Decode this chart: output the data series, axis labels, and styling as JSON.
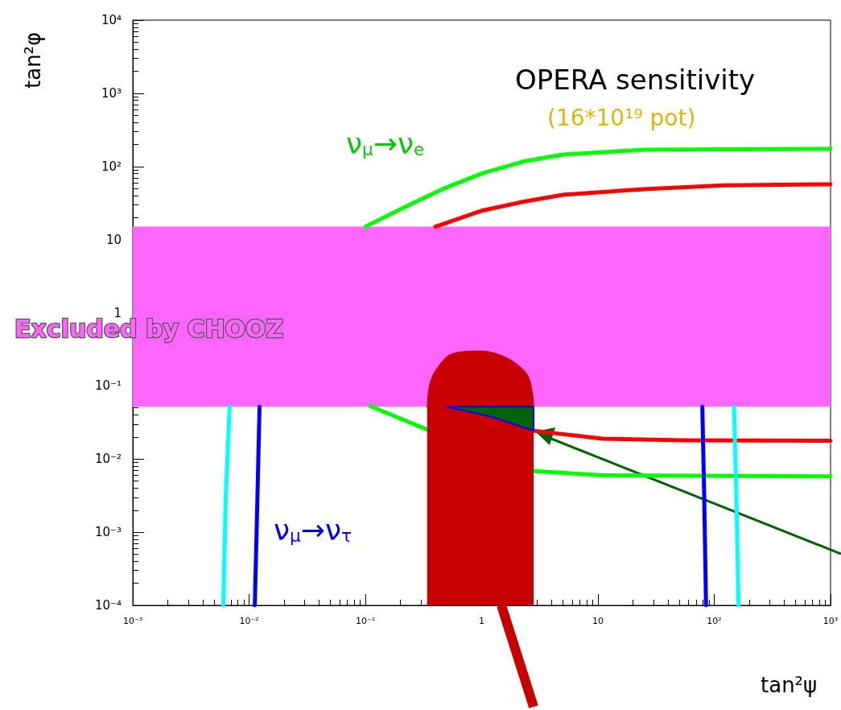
{
  "chart_data": {
    "type": "line",
    "title": "OPERA sensitivity",
    "subtitle": "(16*10¹⁹ pot)",
    "xlabel": "tan²ψ",
    "ylabel": "tan²φ",
    "log": "xy",
    "grid": false,
    "xlim": [
      0.001,
      1000
    ],
    "ylim": [
      0.0001,
      10000
    ],
    "xticks": [
      {
        "value": 0.001,
        "label": "10⁻³"
      },
      {
        "value": 0.01,
        "label": "10⁻²"
      },
      {
        "value": 0.1,
        "label": "10⁻¹"
      },
      1,
      10,
      {
        "value": 100,
        "label": "10²"
      },
      {
        "value": 1000,
        "label": "10³"
      }
    ],
    "yticks": [
      {
        "value": 0.0001,
        "label": "10⁻⁴"
      },
      {
        "value": 0.001,
        "label": "10⁻³"
      },
      {
        "value": 0.01,
        "label": "10⁻²"
      },
      {
        "value": 0.1,
        "label": "10⁻¹"
      },
      1,
      10,
      {
        "value": 100,
        "label": "10²"
      },
      {
        "value": 1000,
        "label": "10³"
      },
      {
        "value": 10000,
        "label": "10⁴"
      }
    ],
    "series": [
      {
        "color": "#00ff00",
        "x": [
          0.1,
          0.21,
          0.46,
          1.02,
          2.3,
          5,
          25,
          1000
        ],
        "values": [
          15,
          27,
          49,
          81,
          117,
          145,
          169,
          174
        ]
      },
      {
        "color": "#00ff00",
        "x": [
          0.11,
          0.29,
          2.7,
          11,
          1000
        ],
        "values": [
          0.053,
          0.028,
          0.0069,
          0.006,
          0.0058
        ]
      },
      {
        "color": "#ff0000",
        "x": [
          0.4,
          1.02,
          2.3,
          5,
          25,
          120,
          1000
        ],
        "values": [
          15,
          25,
          33,
          41,
          49,
          55,
          57
        ]
      },
      {
        "color": "#ff0000",
        "x": [
          2.7,
          11,
          55,
          1000
        ],
        "values": [
          0.0245,
          0.019,
          0.018,
          0.0178
        ]
      },
      {
        "color": "#0000ff",
        "x": [
          0.0123,
          0.0118,
          0.0112
        ],
        "values": [
          0.052,
          0.003,
          0.0001
        ]
      },
      {
        "color": "#0000ff",
        "x": [
          79,
          82,
          85
        ],
        "values": [
          0.052,
          0.003,
          0.0001
        ]
      },
      {
        "color": "#00ffff",
        "x": [
          0.0068,
          0.0063,
          0.006
        ],
        "values": [
          0.052,
          0.003,
          0.0001
        ]
      },
      {
        "color": "#00ffff",
        "x": [
          148,
          155,
          162
        ],
        "values": [
          0.052,
          0.003,
          0.0001
        ]
      },
      {
        "type": "area",
        "color": "#c80000",
        "x": [
          0.34,
          0.355,
          0.4,
          0.54,
          1.0,
          1.66,
          2.45,
          2.75,
          2.8
        ],
        "values": [
          0.05,
          0.1,
          0.16,
          0.27,
          0.3,
          0.24,
          0.145,
          0.076,
          0.05
        ]
      },
      {
        "type": "area",
        "color": "#0000ff",
        "x": [
          0.5,
          1.2,
          2.8,
          2.8,
          0.5
        ],
        "values": [
          0.052,
          0.038,
          0.0245,
          0.052,
          0.052
        ]
      }
    ],
    "bands": [
      {
        "axis": "y",
        "from": 0.052,
        "to": 15,
        "label": "Excluded by CHOOZ",
        "color": "#ff66ff"
      }
    ],
    "annotations": [
      "ν$_{μ}$→ν$_{e}$",
      "ν$_{μ}$→ν$_{τ}$"
    ]
  }
}
